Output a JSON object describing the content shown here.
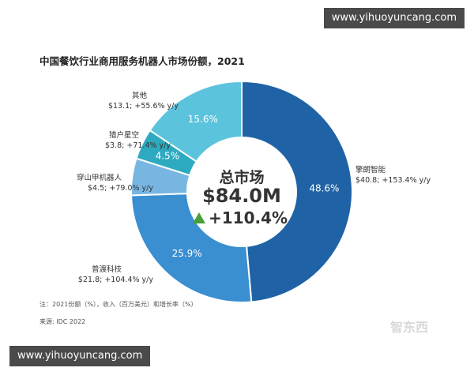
{
  "watermark": {
    "top_text": "www.yihuoyuncang.com",
    "bottom_text": "www.yihuoyuncang.com"
  },
  "chart_data": {
    "type": "pie",
    "title": "中国餐饮行业商用服务机器人市场份额，2021",
    "center": {
      "label": "总市场",
      "total": "$84.0M",
      "growth": "+110.4%",
      "arrow_color": "#4a9e3a"
    },
    "categories": [
      "擎朗智能",
      "普渡科技",
      "穿山甲机器人",
      "猎户星空",
      "其他"
    ],
    "values": [
      48.6,
      25.9,
      5.4,
      4.5,
      15.6
    ],
    "series": [
      {
        "category": "擎朗智能",
        "value": 48.6,
        "pct_label": "48.6%",
        "detail": "$40.8; +153.4% y/y",
        "color": "#1f63a6",
        "text_color": "#ffffff"
      },
      {
        "category": "普渡科技",
        "value": 25.9,
        "pct_label": "25.9%",
        "detail": "$21.8; +104.4% y/y",
        "color": "#3a8fd0",
        "text_color": "#ffffff"
      },
      {
        "category": "穿山甲机器人",
        "value": 5.4,
        "pct_label": "",
        "detail": "$4.5; +79.0% y/y",
        "color": "#78b6e2",
        "text_color": "#ffffff"
      },
      {
        "category": "猎户星空",
        "value": 4.5,
        "pct_label": "4.5%",
        "detail": "$3.8; +71.4% y/y",
        "color": "#2eaac0",
        "text_color": "#ffffff"
      },
      {
        "category": "其他",
        "value": 15.6,
        "pct_label": "15.6%",
        "detail": "$13.1; +55.6% y/y",
        "color": "#5cc3dd",
        "text_color": "#ffffff"
      }
    ],
    "footnote": "注：2021份额（%），收入（百万美元）和增长率（%）",
    "source": "来源: IDC 2022",
    "logo_text": "智东西"
  }
}
